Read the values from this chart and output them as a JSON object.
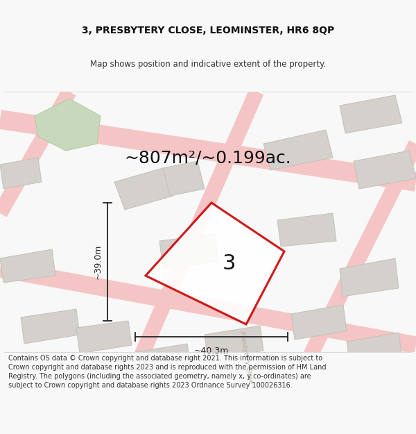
{
  "title_line1": "3, PRESBYTERY CLOSE, LEOMINSTER, HR6 8QP",
  "title_line2": "Map shows position and indicative extent of the property.",
  "area_label": "~807m²/~0.199ac.",
  "plot_number": "3",
  "dim_width": "~40.3m",
  "dim_height": "~39.0m",
  "footer_text": "Contains OS data © Crown copyright and database right 2021. This information is subject to Crown copyright and database rights 2023 and is reproduced with the permission of HM Land Registry. The polygons (including the associated geometry, namely x, y co-ordinates) are subject to Crown copyright and database rights 2023 Ordnance Survey 100026316.",
  "bg_color": "#f8f8f8",
  "map_bg": "#f2f0ed",
  "road_color": "#f5c5c5",
  "road_lw": 9,
  "building_color": "#d4d0cc",
  "building_outline": "#c4c0bc",
  "plot_fill": "#ffffff",
  "plot_border_color": "#cc0000",
  "plot_border_lw": 2.2,
  "green_color": "#c8d8bc",
  "dim_color": "#222222",
  "text_color": "#111111",
  "road_outline_color": "#e8b8b8",
  "presbytery_text_color": "#aaaaaa",
  "title_fontsize": 10,
  "subtitle_fontsize": 8.5,
  "area_fontsize": 18,
  "plot_num_fontsize": 22,
  "dim_fontsize": 9,
  "footer_fontsize": 7
}
